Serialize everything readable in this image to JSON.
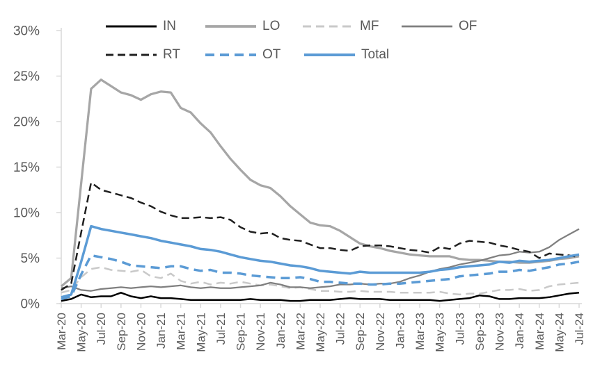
{
  "page": {
    "background": "#ffffff"
  },
  "chart_data": {
    "type": "line",
    "title": "",
    "xlabel": "",
    "ylabel": "",
    "ylim": [
      0,
      30
    ],
    "y_tick_step": 5,
    "grid": false,
    "legend_position": "top",
    "axis_color": "#d9d9d9",
    "tick_text_color": "#595959",
    "y_tick_labels": [
      "0%",
      "5%",
      "10%",
      "15%",
      "20%",
      "25%",
      "30%"
    ],
    "x_tick_labels": [
      "Mar-20",
      "May-20",
      "Jul-20",
      "Sep-20",
      "Nov-20",
      "Jan-21",
      "Mar-21",
      "May-21",
      "Jul-21",
      "Sep-21",
      "Nov-21",
      "Jan-22",
      "Mar-22",
      "May-22",
      "Jul-22",
      "Sep-22",
      "Nov-22",
      "Jan-23",
      "Mar-23",
      "May-23",
      "Jul-23",
      "Sep-23",
      "Nov-23",
      "Jan-24",
      "Mar-24",
      "May-24",
      "Jul-24"
    ],
    "x_monthly": [
      "Mar-20",
      "Apr-20",
      "May-20",
      "Jun-20",
      "Jul-20",
      "Aug-20",
      "Sep-20",
      "Oct-20",
      "Nov-20",
      "Dec-20",
      "Jan-21",
      "Feb-21",
      "Mar-21",
      "Apr-21",
      "May-21",
      "Jun-21",
      "Jul-21",
      "Aug-21",
      "Sep-21",
      "Oct-21",
      "Nov-21",
      "Dec-21",
      "Jan-22",
      "Feb-22",
      "Mar-22",
      "Apr-22",
      "May-22",
      "Jun-22",
      "Jul-22",
      "Aug-22",
      "Sep-22",
      "Oct-22",
      "Nov-22",
      "Dec-22",
      "Jan-23",
      "Feb-23",
      "Mar-23",
      "Apr-23",
      "May-23",
      "Jun-23",
      "Jul-23",
      "Aug-23",
      "Sep-23",
      "Oct-23",
      "Nov-23",
      "Dec-23",
      "Jan-24",
      "Feb-24",
      "Mar-24",
      "Apr-24",
      "May-24",
      "Jun-24",
      "Jul-24"
    ],
    "legend_rows": [
      [
        "IN",
        "LO",
        "MF",
        "OF"
      ],
      [
        "RT",
        "OT",
        "Total"
      ]
    ],
    "series": [
      {
        "name": "IN",
        "color": "#000000",
        "style": "solid",
        "dash": "",
        "width": 2.5,
        "values": [
          0.3,
          0.5,
          1.0,
          0.7,
          0.8,
          0.8,
          1.2,
          0.8,
          0.6,
          0.8,
          0.6,
          0.6,
          0.5,
          0.4,
          0.4,
          0.4,
          0.4,
          0.4,
          0.4,
          0.5,
          0.4,
          0.4,
          0.4,
          0.3,
          0.3,
          0.4,
          0.4,
          0.4,
          0.5,
          0.6,
          0.5,
          0.5,
          0.5,
          0.4,
          0.4,
          0.4,
          0.4,
          0.4,
          0.3,
          0.4,
          0.5,
          0.6,
          0.9,
          0.8,
          0.5,
          0.5,
          0.6,
          0.6,
          0.6,
          0.7,
          0.9,
          1.1,
          1.2
        ]
      },
      {
        "name": "LO",
        "color": "#a6a6a6",
        "style": "solid",
        "dash": "",
        "width": 3.25,
        "values": [
          1.9,
          2.8,
          13.2,
          23.6,
          24.6,
          23.9,
          23.2,
          22.9,
          22.4,
          23.0,
          23.3,
          23.2,
          21.5,
          21.0,
          19.8,
          18.8,
          17.3,
          15.9,
          14.7,
          13.6,
          13.0,
          12.7,
          11.8,
          10.7,
          9.8,
          8.9,
          8.6,
          8.5,
          8.0,
          7.3,
          6.6,
          6.3,
          6.1,
          5.8,
          5.6,
          5.4,
          5.3,
          5.2,
          5.2,
          5.2,
          4.9,
          4.8,
          4.8,
          4.7,
          4.6,
          4.6,
          4.5,
          4.5,
          4.6,
          4.7,
          4.9,
          5.0,
          5.2
        ]
      },
      {
        "name": "MF",
        "color": "#c9c9c9",
        "style": "dashed",
        "dash": "12 7",
        "width": 2.5,
        "values": [
          1.2,
          1.5,
          2.9,
          3.8,
          4.0,
          3.7,
          3.6,
          3.5,
          3.7,
          3.0,
          2.8,
          3.3,
          2.5,
          2.2,
          2.4,
          2.1,
          2.3,
          2.2,
          2.4,
          2.2,
          2.0,
          2.1,
          1.9,
          1.7,
          1.8,
          1.6,
          1.4,
          1.4,
          1.3,
          1.3,
          1.4,
          1.3,
          1.3,
          1.3,
          1.2,
          1.2,
          1.2,
          1.2,
          1.3,
          1.1,
          1.0,
          1.1,
          1.1,
          1.3,
          1.5,
          1.5,
          1.6,
          1.4,
          1.5,
          1.9,
          2.1,
          2.2,
          2.3
        ]
      },
      {
        "name": "OF",
        "color": "#7f7f7f",
        "style": "solid",
        "dash": "",
        "width": 2.25,
        "values": [
          1.7,
          1.9,
          1.5,
          1.4,
          1.6,
          1.7,
          1.8,
          1.7,
          1.8,
          1.9,
          1.8,
          1.9,
          2.0,
          1.8,
          1.7,
          1.8,
          1.7,
          1.7,
          1.8,
          1.9,
          2.0,
          2.3,
          2.1,
          1.8,
          1.8,
          1.7,
          1.8,
          1.9,
          2.1,
          2.1,
          2.2,
          2.1,
          2.2,
          2.2,
          2.4,
          2.8,
          3.1,
          3.5,
          3.8,
          4.0,
          4.3,
          4.5,
          4.7,
          5.0,
          5.3,
          5.4,
          5.7,
          5.6,
          5.7,
          6.2,
          7.0,
          7.6,
          8.2
        ]
      },
      {
        "name": "RT",
        "color": "#1f1f1f",
        "style": "dashed",
        "dash": "11 6",
        "width": 2.5,
        "values": [
          1.5,
          2.2,
          7.8,
          13.3,
          12.5,
          12.2,
          11.9,
          11.6,
          11.1,
          10.7,
          10.1,
          9.7,
          9.4,
          9.4,
          9.5,
          9.4,
          9.5,
          9.2,
          8.4,
          7.9,
          7.7,
          7.8,
          7.2,
          7.0,
          6.9,
          6.5,
          6.1,
          6.1,
          5.9,
          5.8,
          6.3,
          6.4,
          6.4,
          6.3,
          6.1,
          5.9,
          5.8,
          5.6,
          6.2,
          6.0,
          6.6,
          6.9,
          6.8,
          6.7,
          6.4,
          6.2,
          5.9,
          5.7,
          5.0,
          5.5,
          5.4,
          5.3,
          5.1
        ]
      },
      {
        "name": "OT",
        "color": "#5b9bd5",
        "style": "dashed",
        "dash": "13 8",
        "width": 3.5,
        "values": [
          0.5,
          0.8,
          3.2,
          5.3,
          5.1,
          4.9,
          4.6,
          4.2,
          4.1,
          4.0,
          3.9,
          4.1,
          4.1,
          3.8,
          3.6,
          3.7,
          3.4,
          3.4,
          3.3,
          3.1,
          3.0,
          2.9,
          2.8,
          2.8,
          2.9,
          2.7,
          2.4,
          2.4,
          2.3,
          2.2,
          2.2,
          2.1,
          2.1,
          2.2,
          2.2,
          2.3,
          2.4,
          2.5,
          2.6,
          2.7,
          3.0,
          3.1,
          3.2,
          3.3,
          3.5,
          3.5,
          3.7,
          3.6,
          3.8,
          4.0,
          4.3,
          4.4,
          4.6
        ]
      },
      {
        "name": "Total",
        "color": "#5b9bd5",
        "style": "solid",
        "dash": "",
        "width": 3.5,
        "values": [
          0.7,
          1.0,
          4.6,
          8.5,
          8.2,
          8.0,
          7.8,
          7.6,
          7.4,
          7.2,
          6.9,
          6.7,
          6.5,
          6.3,
          6.0,
          5.9,
          5.7,
          5.4,
          5.1,
          4.9,
          4.7,
          4.6,
          4.4,
          4.2,
          4.1,
          3.9,
          3.6,
          3.5,
          3.4,
          3.3,
          3.5,
          3.4,
          3.4,
          3.4,
          3.4,
          3.4,
          3.4,
          3.5,
          3.7,
          3.8,
          4.0,
          4.1,
          4.2,
          4.3,
          4.6,
          4.5,
          4.7,
          4.6,
          4.7,
          4.8,
          5.0,
          5.2,
          5.4
        ]
      }
    ]
  }
}
